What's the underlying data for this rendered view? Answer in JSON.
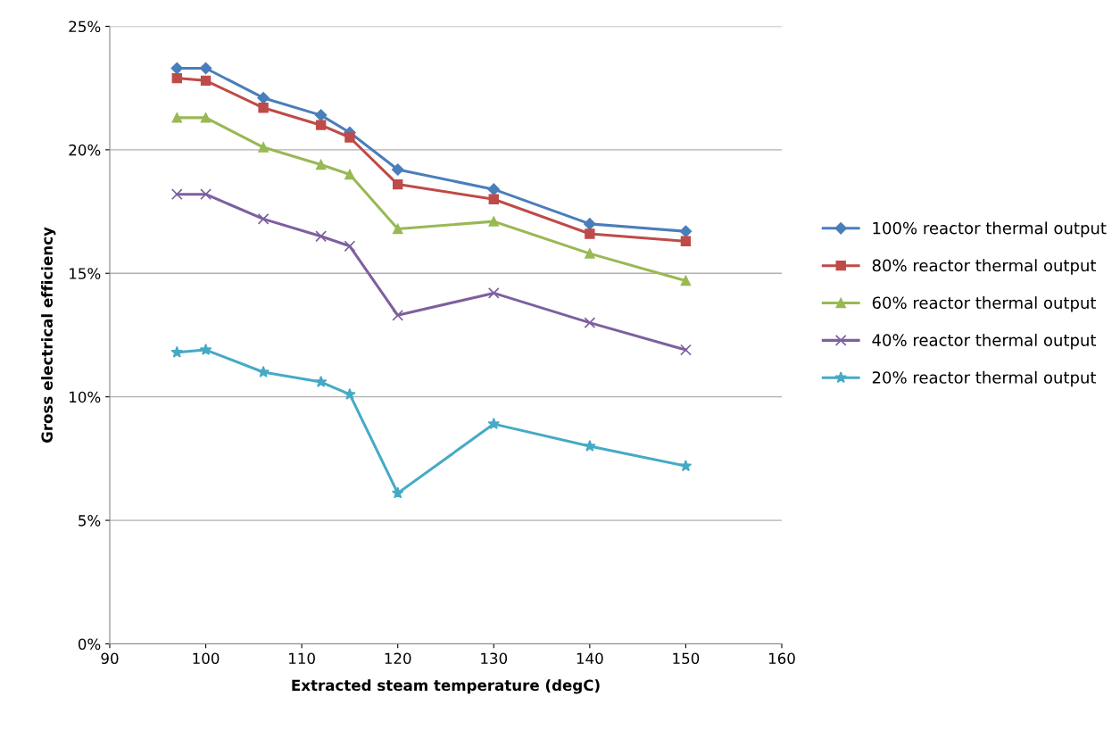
{
  "chart_data": {
    "type": "line",
    "xlabel": "Extracted steam temperature (degC)",
    "ylabel": "Gross electrical efficiency",
    "xlim": [
      90,
      160
    ],
    "xticks": [
      90,
      100,
      110,
      120,
      130,
      140,
      150,
      160
    ],
    "ylim": [
      0,
      25
    ],
    "yticks": [
      {
        "value": 0,
        "label": "0%"
      },
      {
        "value": 5,
        "label": "5%"
      },
      {
        "value": 10,
        "label": "10%"
      },
      {
        "value": 15,
        "label": "15%"
      },
      {
        "value": 20,
        "label": "20%"
      },
      {
        "value": 25,
        "label": "25%"
      }
    ],
    "grid": "y",
    "legend": "right",
    "x": [
      97,
      100,
      106,
      112,
      115,
      120,
      130,
      140,
      150
    ],
    "series": [
      {
        "name": "100% reactor thermal output",
        "color": "#4a7ebb",
        "marker": "diamond",
        "values": [
          23.3,
          23.3,
          22.1,
          21.4,
          20.7,
          19.2,
          18.4,
          17.0,
          16.7
        ]
      },
      {
        "name": "80% reactor thermal output",
        "color": "#be4b48",
        "marker": "square",
        "values": [
          22.9,
          22.8,
          21.7,
          21.0,
          20.5,
          18.6,
          18.0,
          16.6,
          16.3
        ]
      },
      {
        "name": "60% reactor thermal output",
        "color": "#98b954",
        "marker": "triangle",
        "values": [
          21.3,
          21.3,
          20.1,
          19.4,
          19.0,
          16.8,
          17.1,
          15.8,
          14.7
        ]
      },
      {
        "name": "40% reactor thermal output",
        "color": "#7d60a0",
        "marker": "cross",
        "values": [
          18.2,
          18.2,
          17.2,
          16.5,
          16.1,
          13.3,
          14.2,
          13.0,
          11.9
        ]
      },
      {
        "name": "20% reactor thermal output",
        "color": "#46aac5",
        "marker": "star",
        "values": [
          11.8,
          11.9,
          11.0,
          10.6,
          10.1,
          6.1,
          8.9,
          8.0,
          7.2
        ]
      }
    ]
  }
}
